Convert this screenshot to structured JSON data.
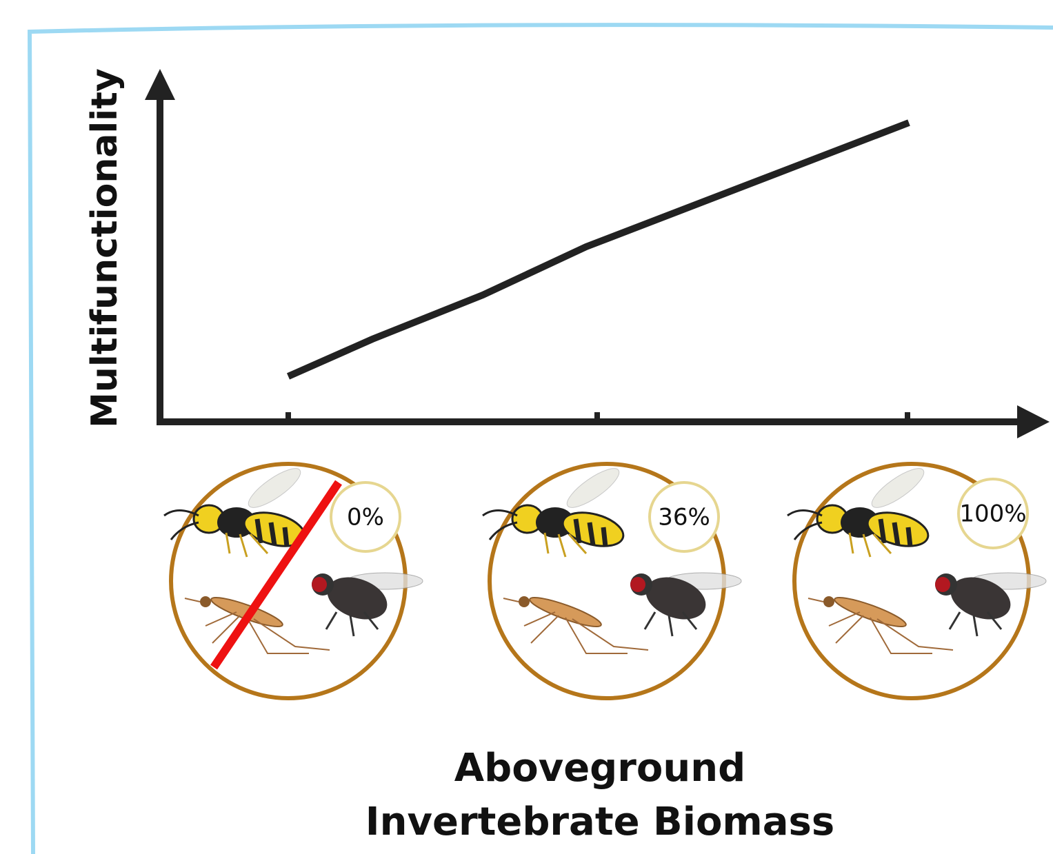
{
  "axes": {
    "y_label": "Multifunctionality",
    "x_label": [
      "Aboveground",
      "Invertebrate Biomass"
    ]
  },
  "panels": [
    {
      "label": "0%"
    },
    {
      "label": "36%"
    },
    {
      "label": "100%"
    }
  ]
}
